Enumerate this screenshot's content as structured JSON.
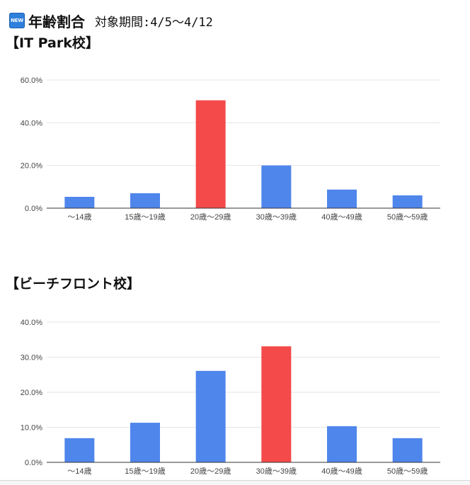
{
  "header": {
    "badge": "NEW",
    "title": "年齢割合",
    "period_label": "対象期間:",
    "period_value": "4/5〜4/12"
  },
  "colors": {
    "normal": "#4f86ec",
    "highlight": "#f44a4a",
    "grid": "#e5e5e5",
    "axis": "#333333"
  },
  "charts": {
    "itpark": {
      "title": "【IT Park校】",
      "chart_data": {
        "type": "bar",
        "categories": [
          "〜14歳",
          "15歳〜19歳",
          "20歳〜29歳",
          "30歳〜39歳",
          "40歳〜49歳",
          "50歳〜59歳"
        ],
        "values": [
          5.3,
          7.0,
          50.5,
          20.0,
          8.7,
          6.0
        ],
        "unit": "%",
        "ylim": [
          0,
          60
        ],
        "yticks": [
          "0.0%",
          "20.0%",
          "40.0%",
          "60.0%"
        ],
        "highlight_index": 2,
        "grid": true,
        "legend": "none"
      }
    },
    "beachfront": {
      "title": "【ビーチフロント校】",
      "chart_data": {
        "type": "bar",
        "categories": [
          "〜14歳",
          "15歳〜19歳",
          "20歳〜29歳",
          "30歳〜39歳",
          "40歳〜49歳",
          "50歳〜59歳"
        ],
        "values": [
          6.9,
          11.3,
          26.1,
          33.1,
          10.3,
          6.9
        ],
        "unit": "%",
        "ylim": [
          0,
          40
        ],
        "yticks": [
          "0.0%",
          "10.0%",
          "20.0%",
          "30.0%",
          "40.0%"
        ],
        "highlight_index": 3,
        "grid": true,
        "legend": "none"
      }
    }
  }
}
